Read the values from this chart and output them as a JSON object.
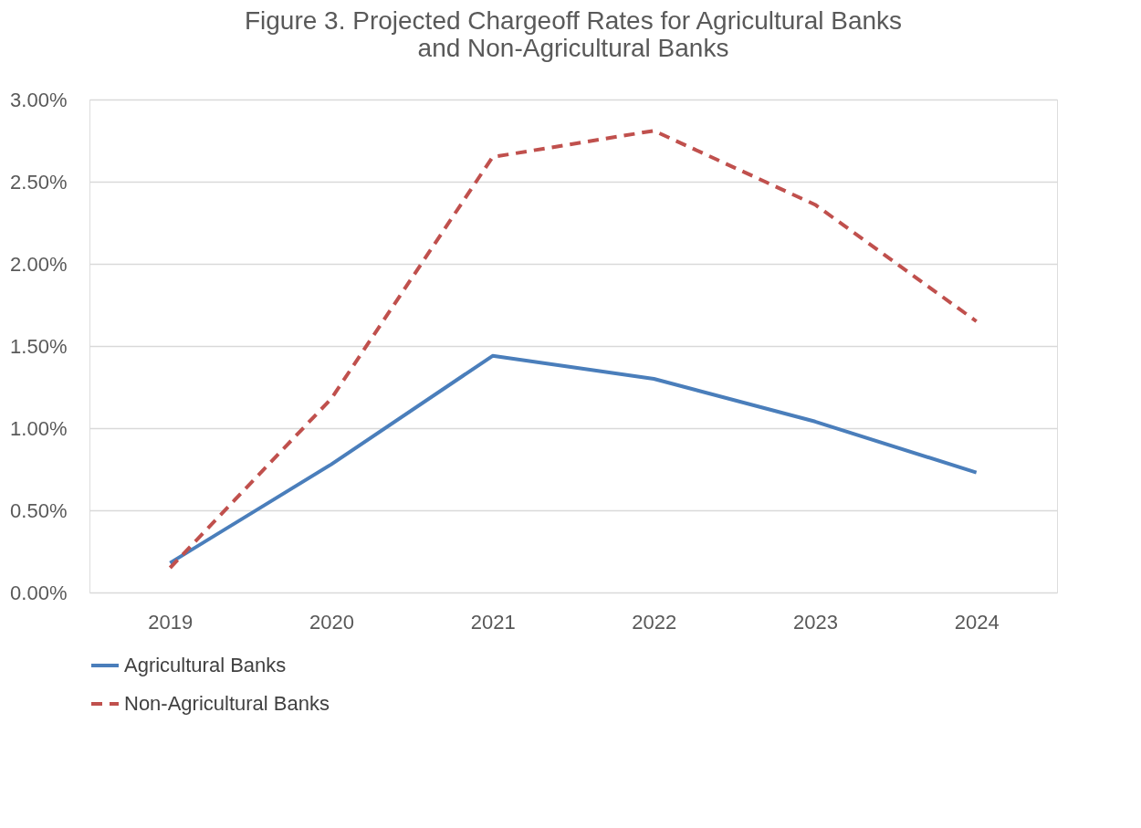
{
  "chart_data": {
    "type": "line",
    "title": "Figure 3.  Projected Chargeoff Rates for Agricultural Banks and Non-Agricultural Banks",
    "categories": [
      "2019",
      "2020",
      "2021",
      "2022",
      "2023",
      "2024"
    ],
    "series": [
      {
        "name": "Agricultural Banks",
        "color": "#4a7ebb",
        "line_style": "solid",
        "values": [
          0.18,
          0.78,
          1.44,
          1.3,
          1.04,
          0.73
        ]
      },
      {
        "name": "Non-Agricultural Banks",
        "color": "#c0504d",
        "line_style": "dashed",
        "values": [
          0.15,
          1.18,
          2.65,
          2.81,
          2.36,
          1.65
        ]
      }
    ],
    "ylim": [
      0,
      3
    ],
    "yticks": [
      {
        "value": 0,
        "label": "0.00%"
      },
      {
        "value": 0.5,
        "label": "0.50%"
      },
      {
        "value": 1,
        "label": "1.00%"
      },
      {
        "value": 1.5,
        "label": "1.50%"
      },
      {
        "value": 2,
        "label": "2.00%"
      },
      {
        "value": 2.5,
        "label": "2.50%"
      },
      {
        "value": 3,
        "label": "3.00%"
      }
    ],
    "grid": "y",
    "legend": "bottom",
    "marker": "none"
  }
}
